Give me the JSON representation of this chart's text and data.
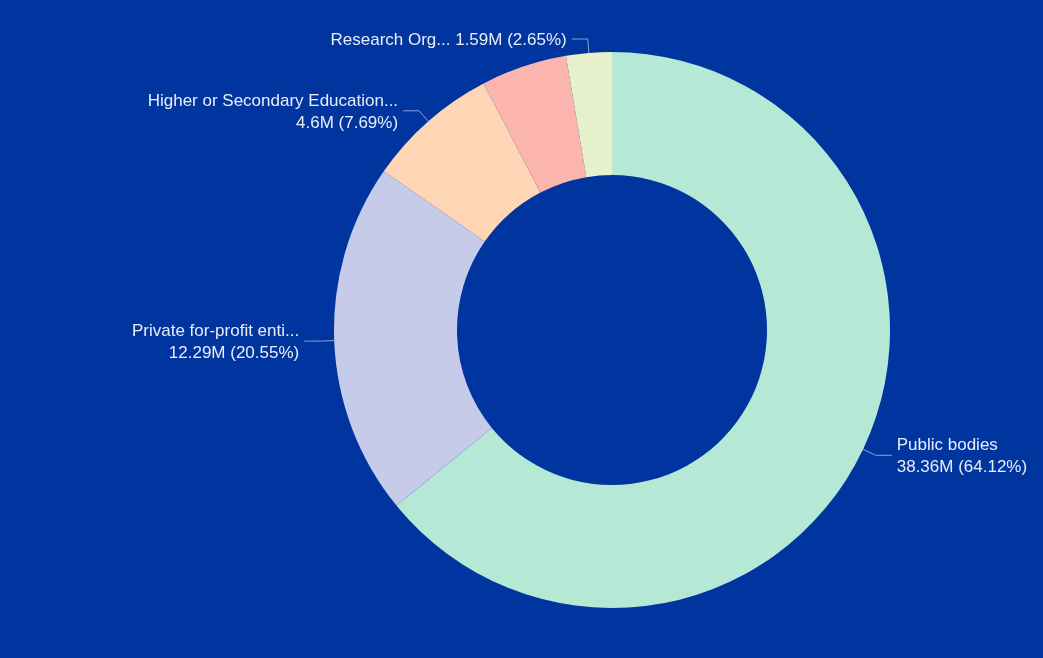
{
  "chart_data": {
    "type": "donut",
    "categories": [
      "Public bodies",
      "Private for-profit enti...",
      "Higher or Secondary Education...",
      null,
      "Research Org..."
    ],
    "values": [
      64.12,
      20.55,
      7.69,
      4.99,
      2.65
    ],
    "value_labels": [
      "38.36M (64.12%)",
      "12.29M (20.55%)",
      "4.6M (7.69%)",
      null,
      "1.59M (2.65%)"
    ],
    "colors": [
      "#b5e8d5",
      "#c6cbea",
      "#fed6b5",
      "#fcb5ae",
      "#e6f1cc"
    ]
  }
}
